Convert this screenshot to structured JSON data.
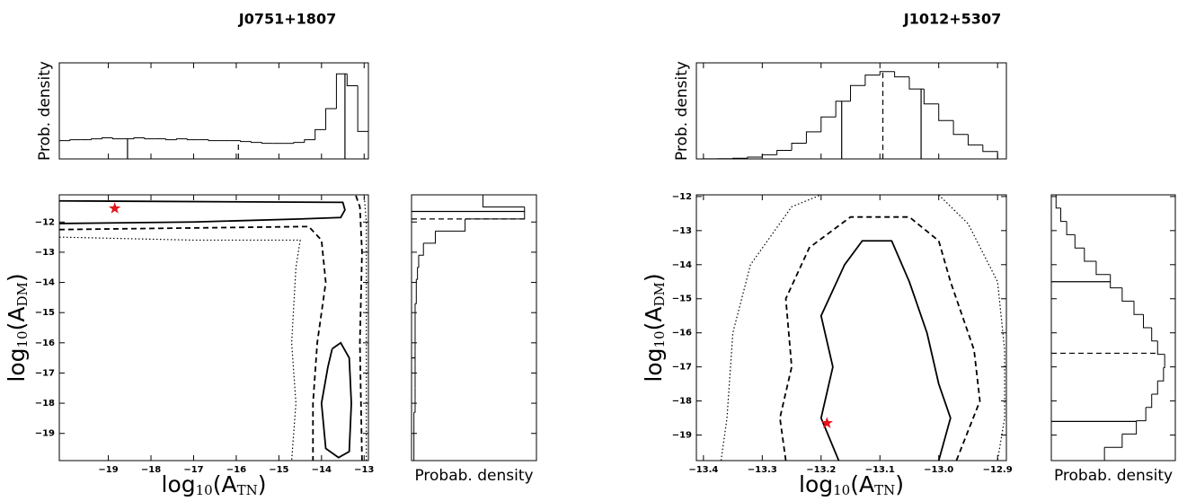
{
  "chart_data": [
    {
      "type": "corner",
      "title": "J0751+1807",
      "color": "#000000",
      "x_label": [
        "log",
        "10",
        "(A",
        "TN",
        ")"
      ],
      "y_label": [
        "log",
        "10",
        "(A",
        "DM",
        ")"
      ],
      "top_ylabel": "Prob. density",
      "side_xlabel": "Probab. density",
      "xlim": [
        -20.15,
        -12.9
      ],
      "ylim": [
        -19.9,
        -11.1
      ],
      "xticks": [
        {
          "value": -19,
          "label": "−19"
        },
        {
          "value": -18,
          "label": "−18"
        },
        {
          "value": -17,
          "label": "−17"
        },
        {
          "value": -16,
          "label": "−16"
        },
        {
          "value": -15,
          "label": "−15"
        },
        {
          "value": -14,
          "label": "−14"
        },
        {
          "value": -13,
          "label": "−13"
        }
      ],
      "yticks": [
        {
          "value": -12,
          "label": "−12"
        },
        {
          "value": -13,
          "label": "−13"
        },
        {
          "value": -14,
          "label": "−14"
        },
        {
          "value": -15,
          "label": "−15"
        },
        {
          "value": -16,
          "label": "−16"
        },
        {
          "value": -17,
          "label": "−17"
        },
        {
          "value": -18,
          "label": "−18"
        },
        {
          "value": -19,
          "label": "−19"
        }
      ],
      "top_hist": {
        "ylim": [
          0,
          1.05
        ],
        "bins": [
          -20.15,
          -19.9,
          -19.65,
          -19.4,
          -19.15,
          -18.9,
          -18.65,
          -18.4,
          -18.15,
          -17.9,
          -17.65,
          -17.4,
          -17.15,
          -16.9,
          -16.65,
          -16.4,
          -16.15,
          -15.9,
          -15.65,
          -15.4,
          -15.15,
          -14.9,
          -14.65,
          -14.4,
          -14.15,
          -13.9,
          -13.65,
          -13.4,
          -13.15,
          -12.9
        ],
        "values": [
          0.2,
          0.21,
          0.21,
          0.22,
          0.23,
          0.22,
          0.22,
          0.23,
          0.22,
          0.22,
          0.21,
          0.22,
          0.21,
          0.21,
          0.2,
          0.2,
          0.2,
          0.19,
          0.18,
          0.17,
          0.17,
          0.17,
          0.18,
          0.21,
          0.32,
          0.55,
          0.93,
          0.8,
          0.3
        ],
        "quantiles": [
          -18.55,
          -15.95,
          -13.45
        ],
        "quantile_styles": [
          "solid",
          "dashed",
          "solid"
        ]
      },
      "side_hist": {
        "xlim": [
          0,
          1.05
        ],
        "bins": [
          -19.9,
          -19.5,
          -19.1,
          -18.7,
          -18.3,
          -17.9,
          -17.5,
          -17.1,
          -16.7,
          -16.3,
          -15.9,
          -15.5,
          -15.1,
          -14.7,
          -14.3,
          -13.9,
          -13.5,
          -13.1,
          -12.7,
          -12.3,
          -11.9,
          -11.5,
          -11.1
        ],
        "values": [
          0.02,
          0.02,
          0.02,
          0.02,
          0.03,
          0.03,
          0.03,
          0.03,
          0.03,
          0.03,
          0.03,
          0.03,
          0.03,
          0.04,
          0.04,
          0.05,
          0.06,
          0.1,
          0.2,
          0.45,
          0.95,
          0.6
        ],
        "quantiles": [
          -16.5,
          -11.9,
          -11.65
        ],
        "quantile_styles": [
          "solid",
          "dashed",
          "solid"
        ]
      },
      "contours": [
        {
          "style": "solid",
          "x": [
            -20.15,
            -13.5,
            -13.45,
            -13.55,
            -14.5,
            -17,
            -20.15,
            null,
            -13.75,
            -13.55,
            -13.35,
            -13.3,
            -13.35,
            -13.6,
            -13.9,
            -14.0,
            -13.85,
            -13.75
          ],
          "y": [
            -11.3,
            -11.35,
            -11.6,
            -11.85,
            -11.9,
            -12.0,
            -12.05,
            null,
            -16.2,
            -16.0,
            -16.5,
            -18,
            -19.6,
            -19.8,
            -19.5,
            -18,
            -16.8,
            -16.2
          ]
        },
        {
          "style": "dashed",
          "x": [
            -20.15,
            -14.3,
            -14.0,
            -13.9,
            -14.1,
            -14.2,
            -14.2,
            null,
            -13.05,
            -13.1,
            -13.05,
            -13.1,
            -13.2
          ],
          "y": [
            -12.25,
            -12.15,
            -12.6,
            -14,
            -16,
            -18,
            -19.9,
            null,
            -19.9,
            -16,
            -13,
            -11.5,
            -11.1
          ]
        },
        {
          "style": "dotted",
          "x": [
            -20.15,
            -17,
            -14.5,
            -14.6,
            -14.7,
            -14.6,
            -14.7,
            null,
            -12.95,
            -12.95,
            -13.0
          ],
          "y": [
            -12.5,
            -12.6,
            -12.6,
            -13.5,
            -16,
            -18,
            -19.9,
            null,
            -19.9,
            -12.0,
            -11.1
          ]
        }
      ],
      "marker": {
        "x": -18.85,
        "y": -11.55,
        "color": "#e3161b"
      }
    },
    {
      "type": "corner",
      "title": "J1012+5307",
      "color": "#000000",
      "x_label": [
        "log",
        "10",
        "(A",
        "TN",
        ")"
      ],
      "y_label": [
        "log",
        "10",
        "(A",
        "DM",
        ")"
      ],
      "top_ylabel": "Prob. density",
      "side_xlabel": "Probab. density",
      "xlim": [
        -13.412,
        -12.885
      ],
      "ylim": [
        -19.75,
        -11.95
      ],
      "xticks": [
        {
          "value": -13.4,
          "label": "−13.4"
        },
        {
          "value": -13.3,
          "label": "−13.3"
        },
        {
          "value": -13.2,
          "label": "−13.2"
        },
        {
          "value": -13.1,
          "label": "−13.1"
        },
        {
          "value": -13.0,
          "label": "−13.0"
        },
        {
          "value": -12.9,
          "label": "−12.9"
        }
      ],
      "yticks": [
        {
          "value": -12,
          "label": "−12"
        },
        {
          "value": -13,
          "label": "−13"
        },
        {
          "value": -14,
          "label": "−14"
        },
        {
          "value": -15,
          "label": "−15"
        },
        {
          "value": -16,
          "label": "−16"
        },
        {
          "value": -17,
          "label": "−17"
        },
        {
          "value": -18,
          "label": "−18"
        },
        {
          "value": -19,
          "label": "−19"
        }
      ],
      "top_hist": {
        "ylim": [
          0,
          1.1
        ],
        "bins": [
          -13.4,
          -13.375,
          -13.35,
          -13.325,
          -13.3,
          -13.275,
          -13.25,
          -13.225,
          -13.2,
          -13.175,
          -13.15,
          -13.125,
          -13.1,
          -13.075,
          -13.05,
          -13.025,
          -13.0,
          -12.975,
          -12.95,
          -12.925,
          -12.9
        ],
        "values": [
          0.001,
          0.003,
          0.008,
          0.02,
          0.047,
          0.098,
          0.18,
          0.31,
          0.48,
          0.66,
          0.84,
          0.96,
          1.0,
          0.94,
          0.8,
          0.63,
          0.44,
          0.28,
          0.16,
          0.085
        ],
        "quantiles": [
          -13.165,
          -13.095,
          -13.03
        ],
        "quantile_styles": [
          "solid",
          "dashed",
          "solid"
        ]
      },
      "side_hist": {
        "xlim": [
          0,
          1.05
        ],
        "bins": [
          -19.75,
          -19.36,
          -18.97,
          -18.58,
          -18.19,
          -17.8,
          -17.41,
          -17.02,
          -16.63,
          -16.24,
          -15.85,
          -15.46,
          -15.07,
          -14.68,
          -14.29,
          -13.9,
          -13.51,
          -13.12,
          -12.73,
          -12.34,
          -11.95
        ],
        "values": [
          0.45,
          0.6,
          0.72,
          0.8,
          0.85,
          0.9,
          0.95,
          0.96,
          0.9,
          0.85,
          0.78,
          0.7,
          0.6,
          0.5,
          0.38,
          0.28,
          0.2,
          0.13,
          0.08,
          0.04
        ],
        "quantiles": [
          -18.6,
          -16.6,
          -14.5
        ],
        "quantile_styles": [
          "solid",
          "dashed",
          "solid"
        ]
      },
      "contours": [
        {
          "style": "solid",
          "x": [
            -13.17,
            -13.2,
            -13.18,
            -13.2,
            -13.16,
            -13.13,
            -13.08,
            -13.05,
            -13.02,
            -13.0,
            -12.98,
            -13.0
          ],
          "y": [
            -19.75,
            -18.5,
            -17,
            -15.5,
            -14,
            -13.3,
            -13.3,
            -14.5,
            -16,
            -17.5,
            -18.5,
            -19.75
          ]
        },
        {
          "style": "dashed",
          "x": [
            -13.26,
            -13.27,
            -13.25,
            -13.26,
            -13.22,
            -13.15,
            -13.05,
            -13.0,
            -12.98,
            -12.94,
            -12.93,
            -12.97
          ],
          "y": [
            -19.75,
            -18.5,
            -17,
            -15,
            -13.5,
            -12.6,
            -12.6,
            -13.3,
            -14.5,
            -16.5,
            -18,
            -19.75
          ]
        },
        {
          "style": "dotted",
          "x": [
            -13.37,
            -13.36,
            -13.35,
            -13.32,
            -13.25,
            -13.2,
            null,
            -13.0,
            -12.95,
            -12.9,
            -12.888,
            -12.888,
            -12.9
          ],
          "y": [
            -19.75,
            -18.5,
            -16,
            -14,
            -12.3,
            -11.95,
            null,
            -11.95,
            -12.8,
            -14.5,
            -16.5,
            -18.5,
            -19.75
          ]
        }
      ],
      "marker": {
        "x": -13.19,
        "y": -18.65,
        "color": "#e3161b"
      }
    }
  ]
}
